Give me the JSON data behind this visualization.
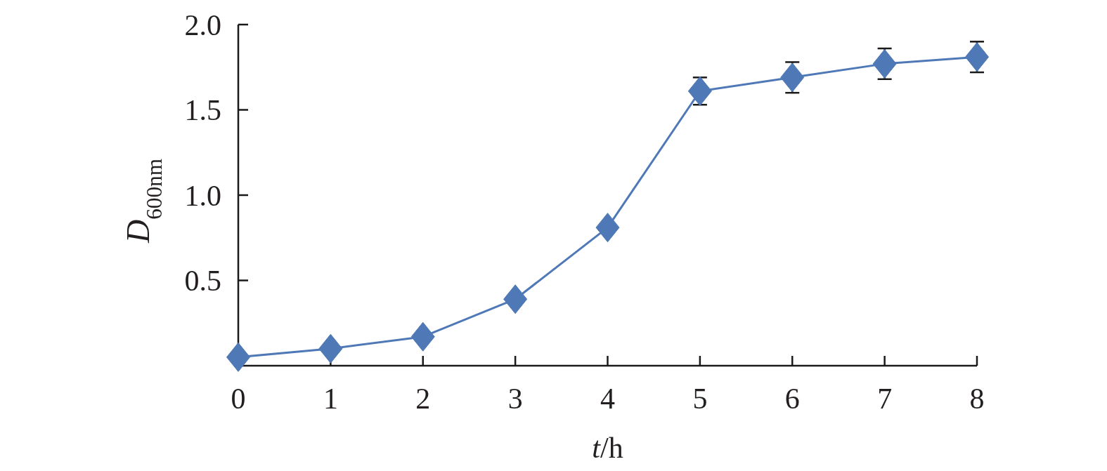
{
  "chart_data": {
    "type": "line",
    "xlabel": "t/h",
    "ylabel": "D$_{600nm}$",
    "x": [
      0,
      1,
      2,
      3,
      4,
      5,
      6,
      7,
      8
    ],
    "series": [
      {
        "color": "#4f79b6",
        "values": [
          0.05,
          0.1,
          0.17,
          0.39,
          0.81,
          1.61,
          1.69,
          1.77,
          1.81
        ],
        "errors": [
          null,
          null,
          null,
          null,
          null,
          0.08,
          0.09,
          0.09,
          0.09
        ]
      }
    ],
    "xlim": [
      0,
      8
    ],
    "ylim": [
      0,
      2
    ],
    "xticks": [
      0,
      1,
      2,
      3,
      4,
      5,
      6,
      7,
      8
    ],
    "yticks": [
      0.5,
      {
        "value": 1,
        "label": "1.0"
      },
      1.5,
      {
        "value": 2,
        "label": "2.0"
      }
    ],
    "marker": "diamond",
    "line_style": "solid"
  }
}
